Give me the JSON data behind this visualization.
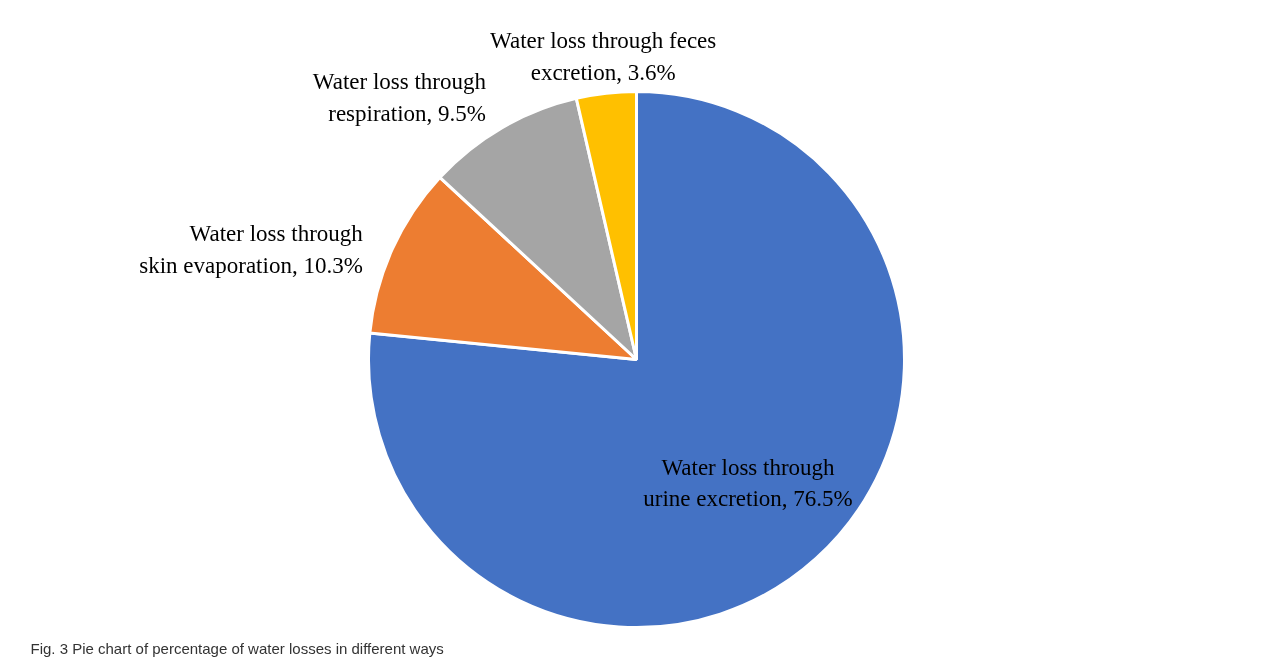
{
  "chart_data": {
    "type": "pie",
    "categories": [
      "Water loss through urine excretion",
      "Water loss through skin evaporation",
      "Water loss through respiration",
      "Water loss through feces excretion"
    ],
    "values": [
      76.5,
      10.3,
      9.5,
      3.6
    ],
    "value_labels": [
      "76.5%",
      "10.3%",
      "9.5%",
      "3.6%"
    ],
    "colors": [
      "#4472c4",
      "#ed7d31",
      "#a5a5a5",
      "#ffc000"
    ],
    "annotations": [
      "Fig. 3 Pie chart of percentage of water losses in different ways"
    ]
  }
}
